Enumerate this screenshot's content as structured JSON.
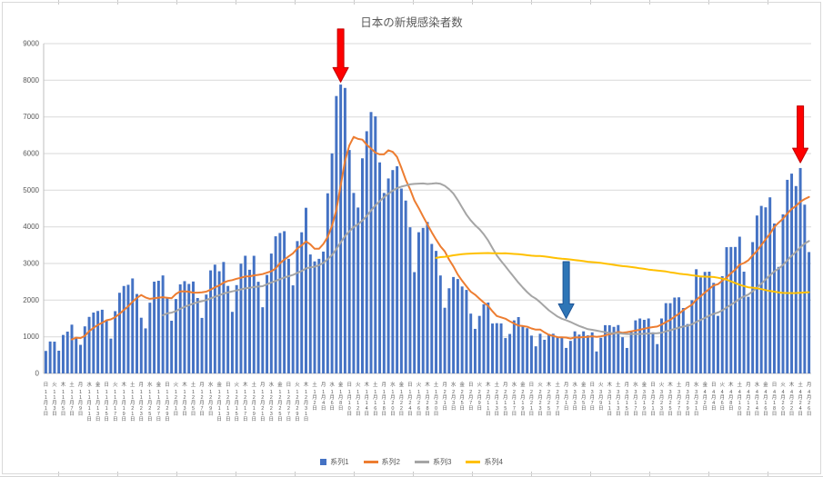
{
  "chart_data": {
    "type": "bar",
    "title": "日本の新規感染者数",
    "ylim": [
      0,
      9000
    ],
    "ytick_step": 1000,
    "grid": true,
    "legend_position": "bottom",
    "x_start_date": "2020-11-01",
    "x_end_date": "2021-04-26",
    "x_label_interval": 2,
    "weekday_chars": [
      "日",
      "月",
      "火",
      "水",
      "木",
      "金",
      "土"
    ],
    "start_weekday_index": 0,
    "month_numbers": [
      11,
      12,
      1,
      2,
      3,
      4
    ],
    "month_lengths": [
      30,
      31,
      31,
      28,
      31,
      26
    ],
    "month_suffix": "月",
    "day_suffix": "日",
    "axis_color": "#bfbfbf",
    "gridline_color": "#d9d9d9",
    "label_color": "#595959",
    "series": [
      {
        "name": "系列1",
        "type": "bar",
        "color": "#4472C4",
        "values": [
          614,
          871,
          867,
          620,
          1050,
          1141,
          1331,
          957,
          780,
          1284,
          1543,
          1661,
          1704,
          1738,
          1440,
          950,
          1699,
          2201,
          2386,
          2418,
          2592,
          2168,
          1520,
          1229,
          1930,
          2504,
          2529,
          2674,
          2066,
          1438,
          2030,
          2430,
          2518,
          2442,
          2508,
          2058,
          1515,
          2152,
          2812,
          2968,
          2788,
          3041,
          2388,
          1680,
          2410,
          2994,
          3211,
          2829,
          3210,
          2501,
          1806,
          2688,
          3271,
          3742,
          3832,
          3881,
          3127,
          2403,
          3611,
          3852,
          4520,
          3246,
          3057,
          3127,
          3325,
          4915,
          6004,
          7570,
          7882,
          7790,
          6097,
          4925,
          4527,
          5870,
          6609,
          7133,
          7014,
          5759,
          4925,
          5320,
          5549,
          5653,
          5045,
          4717,
          3988,
          2764,
          3853,
          3971,
          4133,
          3534,
          3344,
          2673,
          1792,
          2324,
          2631,
          2576,
          2372,
          2279,
          1632,
          1216,
          1570,
          1887,
          1933,
          1362,
          1371,
          1364,
          965,
          1077,
          1448,
          1538,
          1301,
          1234,
          1032,
          740,
          1083,
          918,
          1076,
          1083,
          997,
          999,
          696,
          888,
          1148,
          1059,
          1148,
          1038,
          1121,
          599,
          972,
          1317,
          1316,
          1271,
          1320,
          988,
          695,
          1131,
          1448,
          1499,
          1463,
          1500,
          1121,
          800,
          1500,
          1918,
          1917,
          2070,
          2077,
          1785,
          1348,
          1997,
          2843,
          2620,
          2770,
          2777,
          2471,
          1571,
          2654,
          3445,
          3450,
          3451,
          3731,
          2777,
          2091,
          3584,
          4309,
          4572,
          4532,
          4805,
          4091,
          2907,
          4342,
          5283,
          5452,
          5113,
          5605,
          4605,
          3312
        ]
      },
      {
        "name": "系列2",
        "type": "line",
        "color": "#ED7D31",
        "derived_from": "系列1",
        "transform": "moving_average",
        "window": 7
      },
      {
        "name": "系列3",
        "type": "line",
        "color": "#A5A5A5",
        "derived_from": "系列1",
        "transform": "moving_average",
        "window": 28
      },
      {
        "name": "系列4",
        "type": "line",
        "color": "#FFC000",
        "derived_from": "系列1",
        "transform": "moving_average",
        "window": 91
      }
    ],
    "annotations": [
      {
        "type": "down-arrow",
        "color": "#ff0000",
        "stroke": "#c00000",
        "index": 68,
        "value_top": 9400,
        "value_tip": 7950
      },
      {
        "type": "down-arrow",
        "color": "#2e75b6",
        "stroke": "#1f5597",
        "index": 120,
        "value_top": 3050,
        "value_tip": 1500
      },
      {
        "type": "down-arrow",
        "color": "#ff0000",
        "stroke": "#c00000",
        "index": 174,
        "value_top": 7300,
        "value_tip": 5750
      }
    ]
  }
}
